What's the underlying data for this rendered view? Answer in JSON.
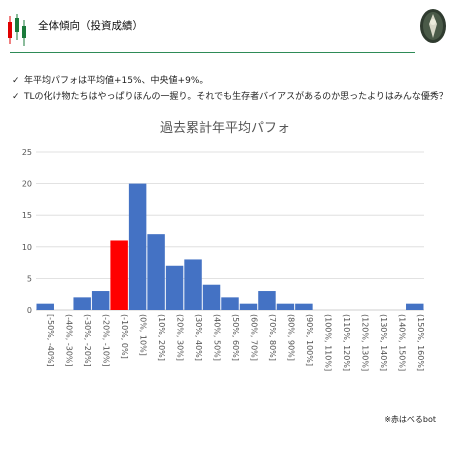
{
  "header": {
    "title": "全体傾向（投資成績）"
  },
  "bullets": [
    "年平均パフォは平均値+15%、中央値+9%。",
    "TLの化け物たちはやっぱりほんの一握り。それでも生存者バイアスがあるのか思ったよりはみんな優秀？"
  ],
  "colors": {
    "bar": "#4472c4",
    "highlight": "#ff0000",
    "rule": "#2e8b57",
    "grid": "#d9d9d9"
  },
  "chart_data": {
    "type": "bar",
    "title": "過去累計年平均パフォ",
    "categories": [
      "[-50%, -40%]",
      "(-40%, -30%]",
      "(-30%, -20%]",
      "(-20%, -10%]",
      "(-10%, 0%]",
      "(0%, 10%]",
      "(10%, 20%]",
      "(20%, 30%]",
      "(30%, 40%]",
      "(40%, 50%]",
      "(50%, 60%]",
      "(60%, 70%]",
      "(70%, 80%]",
      "(80%, 90%]",
      "(90%, 100%]",
      "(100%, 110%]",
      "(110%, 120%]",
      "(120%, 130%]",
      "(130%, 140%]",
      "(140%, 150%]",
      "(150%, 160%]"
    ],
    "values": [
      1,
      0,
      2,
      3,
      11,
      20,
      12,
      7,
      8,
      4,
      2,
      1,
      3,
      1,
      1,
      0,
      0,
      0,
      0,
      0,
      1
    ],
    "highlight_index": 4,
    "ylim": [
      0,
      25
    ],
    "yticks": [
      0,
      5,
      10,
      15,
      20,
      25
    ],
    "grid": true,
    "legend": "none"
  },
  "footnote": "※赤はべるbot"
}
